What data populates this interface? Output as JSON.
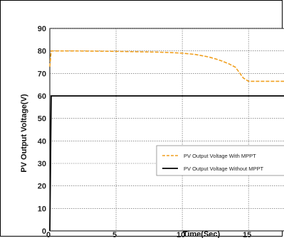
{
  "chart_data": {
    "type": "line",
    "xlabel": "Time(Sec)",
    "ylabel": "PV Output Voltage(V)",
    "xlim": [
      0,
      18
    ],
    "ylim": [
      0,
      90
    ],
    "xticks": [
      0,
      5,
      10,
      15
    ],
    "yticks": [
      0,
      10,
      20,
      30,
      40,
      50,
      60,
      70,
      80,
      90
    ],
    "grid": true,
    "legend_position": "lower-right",
    "series": [
      {
        "name": "PV Output Voltage With MPPT",
        "color": "#f0a020",
        "style": "dashed",
        "x": [
          0,
          0.1,
          0.5,
          2,
          5,
          8,
          9,
          10,
          11,
          12,
          12.5,
          13,
          13.5,
          14,
          14.3,
          14.6,
          15,
          16,
          17,
          18
        ],
        "y": [
          73,
          80,
          80,
          80,
          79.8,
          79.5,
          79.3,
          79,
          78.4,
          77.3,
          76.5,
          75.5,
          74.3,
          72.8,
          70.5,
          68,
          66.5,
          66.5,
          66.5,
          66.5
        ]
      },
      {
        "name": "PV Output Voltage Without MPPT",
        "color": "#000000",
        "style": "solid",
        "x": [
          0,
          0.1,
          18
        ],
        "y": [
          0,
          60,
          60
        ]
      }
    ]
  }
}
